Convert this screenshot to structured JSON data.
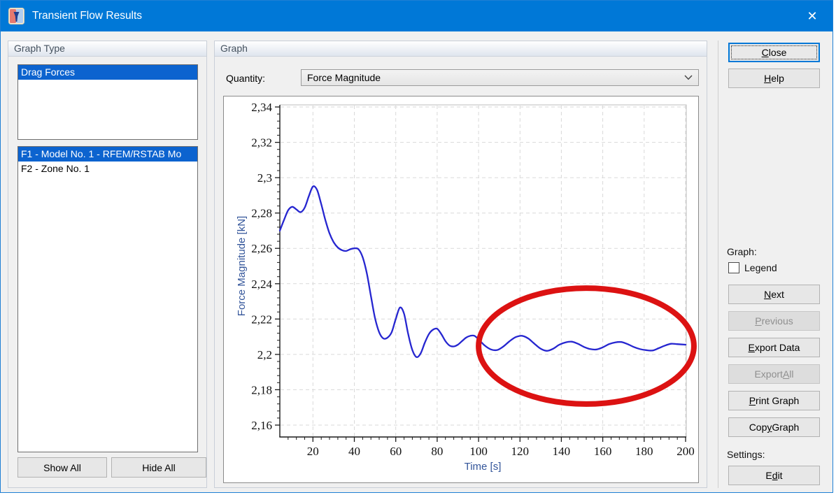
{
  "window": {
    "title": "Transient Flow Results",
    "close_glyph": "✕"
  },
  "graph_type_panel": {
    "title": "Graph Type",
    "type_items": [
      {
        "label": "Drag Forces",
        "selected": true
      }
    ],
    "series_items": [
      {
        "label": "F1 - Model No. 1 - RFEM/RSTAB Mo",
        "selected": true
      },
      {
        "label": "F2 - Zone No. 1",
        "selected": false
      }
    ],
    "show_all": {
      "label": "Show All"
    },
    "hide_all": {
      "label": "Hide All"
    }
  },
  "graph_panel": {
    "title": "Graph",
    "quantity_label": "Quantity:",
    "quantity_value": "Force Magnitude"
  },
  "right_panel": {
    "close": {
      "label": "Close",
      "mnemonic": "C",
      "enabled": true
    },
    "help": {
      "label": "Help",
      "mnemonic": "H",
      "enabled": true
    },
    "graph_section_label": "Graph:",
    "legend": {
      "label": "Legend",
      "checked": false
    },
    "next": {
      "label": "Next",
      "mnemonic": "N",
      "enabled": true
    },
    "previous": {
      "label": "Previous",
      "mnemonic": "P",
      "enabled": false
    },
    "export_data": {
      "label": "Export Data",
      "mnemonic": "E",
      "enabled": true
    },
    "export_all": {
      "label": "Export All",
      "mnemonic": "A",
      "enabled": false
    },
    "print_graph": {
      "label": "Print Graph",
      "mnemonic": "P",
      "enabled": true
    },
    "copy_graph": {
      "label": "Copy Graph",
      "mnemonic": "y",
      "enabled": true
    },
    "settings_label": "Settings:",
    "edit": {
      "label": "Edit",
      "mnemonic": "d",
      "enabled": true
    }
  },
  "icons": {
    "app": "rwind-app-icon",
    "close": "close-icon",
    "combo": "chevron-down-icon"
  },
  "colors": {
    "titlebar": "#0078d7",
    "selection": "#0c63cf",
    "dialog_bg": "#f0f0f0",
    "axis_title": "#33559a",
    "curve": "#2626d0",
    "annotation_red": "#dc1212"
  },
  "chart_data": {
    "type": "line",
    "title": "",
    "xlabel": "Time [s]",
    "ylabel": "Force Magnitude [kN]",
    "xlim": [
      4,
      200
    ],
    "ylim": [
      2.16,
      2.34
    ],
    "grid": "dashed",
    "legend_visible": false,
    "x_ticks": {
      "values": [
        20,
        40,
        60,
        80,
        100,
        120,
        140,
        160,
        180,
        200
      ],
      "labels": [
        "20",
        "40",
        "60",
        "80",
        "100",
        "120",
        "140",
        "160",
        "180",
        "200"
      ]
    },
    "x_minor_step": 4,
    "y_ticks": {
      "values": [
        2.16,
        2.18,
        2.2,
        2.22,
        2.24,
        2.26,
        2.28,
        2.3,
        2.32,
        2.34
      ],
      "labels": [
        "2,16",
        "2,18",
        "2,2",
        "2,22",
        "2,24",
        "2,26",
        "2,28",
        "2,3",
        "2,32",
        "2,34"
      ]
    },
    "y_minor_step": 0.004,
    "series": [
      {
        "name": "Force Magnitude",
        "color": "#2626d0",
        "x": [
          4,
          6,
          8,
          10,
          12,
          14,
          16,
          18,
          20,
          22,
          24,
          26,
          28,
          30,
          32,
          34,
          36,
          38,
          40,
          42,
          44,
          46,
          48,
          50,
          52,
          54,
          56,
          58,
          60,
          62,
          64,
          66,
          68,
          70,
          72,
          74,
          76,
          78,
          80,
          82,
          84,
          86,
          88,
          90,
          92,
          94,
          96,
          98,
          100,
          103,
          106,
          109,
          112,
          115,
          118,
          121,
          124,
          127,
          130,
          133,
          136,
          139,
          142,
          145,
          148,
          151,
          154,
          157,
          160,
          163,
          166,
          169,
          172,
          175,
          178,
          181,
          184,
          187,
          190,
          193,
          196,
          200
        ],
        "y": [
          2.27,
          2.276,
          2.2815,
          2.2835,
          2.282,
          2.2805,
          2.283,
          2.2895,
          2.295,
          2.293,
          2.285,
          2.276,
          2.2685,
          2.2635,
          2.2605,
          2.259,
          2.2585,
          2.2595,
          2.26,
          2.2595,
          2.255,
          2.246,
          2.233,
          2.2205,
          2.2125,
          2.209,
          2.2095,
          2.2125,
          2.22,
          2.2265,
          2.223,
          2.2115,
          2.2025,
          2.1985,
          2.2005,
          2.2065,
          2.2115,
          2.214,
          2.2145,
          2.2115,
          2.2075,
          2.205,
          2.2045,
          2.2055,
          2.2075,
          2.2095,
          2.2105,
          2.2105,
          2.2085,
          2.205,
          2.2028,
          2.2025,
          2.2045,
          2.2075,
          2.2098,
          2.2105,
          2.209,
          2.206,
          2.2032,
          2.202,
          2.2032,
          2.2055,
          2.2068,
          2.2072,
          2.206,
          2.2042,
          2.203,
          2.2028,
          2.204,
          2.2058,
          2.2068,
          2.207,
          2.2058,
          2.2042,
          2.203,
          2.2024,
          2.2022,
          2.2035,
          2.205,
          2.206,
          2.2058,
          2.2055
        ]
      }
    ],
    "annotation": {
      "type": "ellipse",
      "color": "#dc1212",
      "center_x": 152,
      "center_y": 2.2047,
      "rx": 52,
      "ry": 0.0328,
      "stroke_width": 8
    }
  }
}
